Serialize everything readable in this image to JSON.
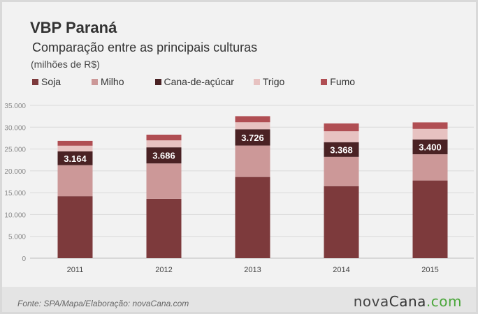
{
  "header": {
    "title": "VBP Paraná",
    "subtitle": "Comparação entre as principais culturas",
    "unit": "(milhões de R$)"
  },
  "footer": {
    "source": "Fonte: SPA/Mapa/Elaboração: novaCana.com",
    "logo_nova": "nova",
    "logo_cana": "Cana",
    "logo_com": ".com"
  },
  "colors": {
    "soja": "#7d3a3c",
    "milho": "#cc9898",
    "cana": "#4a2224",
    "trigo": "#e7c2c1",
    "fumo": "#b04e53",
    "background": "#f2f2f2",
    "footer_bg": "#e4e4e4",
    "logo_accent": "#4aa63a"
  },
  "chart_data": {
    "type": "bar",
    "stacked": true,
    "categories": [
      "2011",
      "2012",
      "2013",
      "2014",
      "2015"
    ],
    "series": [
      {
        "name": "Soja",
        "color": "#7d3a3c",
        "values": [
          14200,
          13600,
          18600,
          16500,
          17800
        ]
      },
      {
        "name": "Milho",
        "color": "#cc9898",
        "values": [
          7100,
          8100,
          7200,
          6700,
          6000
        ]
      },
      {
        "name": "Cana-de-açúcar",
        "color": "#4a2224",
        "values": [
          3164,
          3686,
          3726,
          3368,
          3400
        ]
      },
      {
        "name": "Trigo",
        "color": "#e7c2c1",
        "values": [
          1300,
          1600,
          1600,
          2500,
          2400
        ]
      },
      {
        "name": "Fumo",
        "color": "#b04e53",
        "values": [
          1100,
          1300,
          1400,
          1800,
          1500
        ]
      }
    ],
    "data_labels": [
      "3.164",
      "3.686",
      "3.726",
      "3.368",
      "3.400"
    ],
    "y_ticks": [
      "0",
      "5.000",
      "10.000",
      "15.000",
      "20.000",
      "25.000",
      "30.000",
      "35.000"
    ],
    "ylim": [
      0,
      35000
    ],
    "grid": true,
    "legend_position": "top-left"
  }
}
